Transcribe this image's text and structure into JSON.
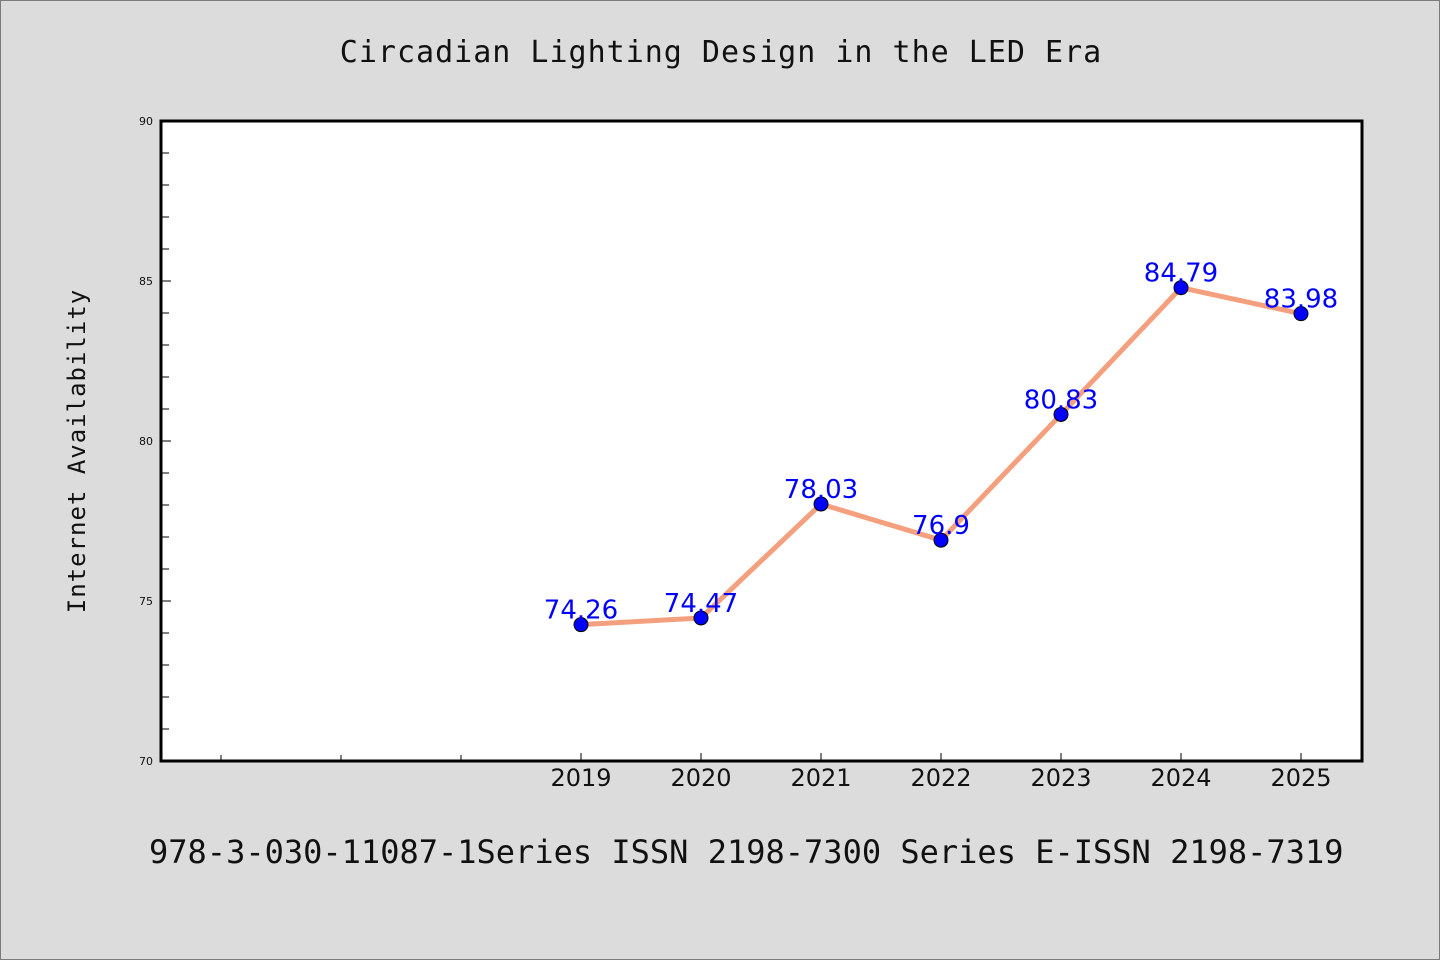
{
  "chart_data": {
    "type": "line",
    "title": "Circadian Lighting Design in the LED Era",
    "xlabel": "",
    "ylabel": "Internet Availability",
    "categories": [
      "2019",
      "2020",
      "2021",
      "2022",
      "2023",
      "2024",
      "2025"
    ],
    "series": [
      {
        "values": [
          74.26,
          74.47,
          78.03,
          76.9,
          80.83,
          84.79,
          83.98
        ],
        "data_labels": [
          "74.26",
          "74.47",
          "78.03",
          "76.9",
          "80.83",
          "84.79",
          "83.98"
        ],
        "line_color": "#f4a07e",
        "marker_color": "#0000ff"
      }
    ],
    "y_ticks": [
      "70",
      "75",
      "80",
      "85",
      "90"
    ],
    "ylim": [
      70,
      90
    ],
    "grid": false,
    "legend": "none"
  },
  "footer": "978-3-030-11087-1Series ISSN 2198-7300 Series E-ISSN 2198-7319",
  "colors": {
    "background": "#dcdcdc",
    "plot_area": "#ffffff",
    "line": "#f4a07e",
    "marker": "#0000ff",
    "data_label": "#0000ff"
  }
}
